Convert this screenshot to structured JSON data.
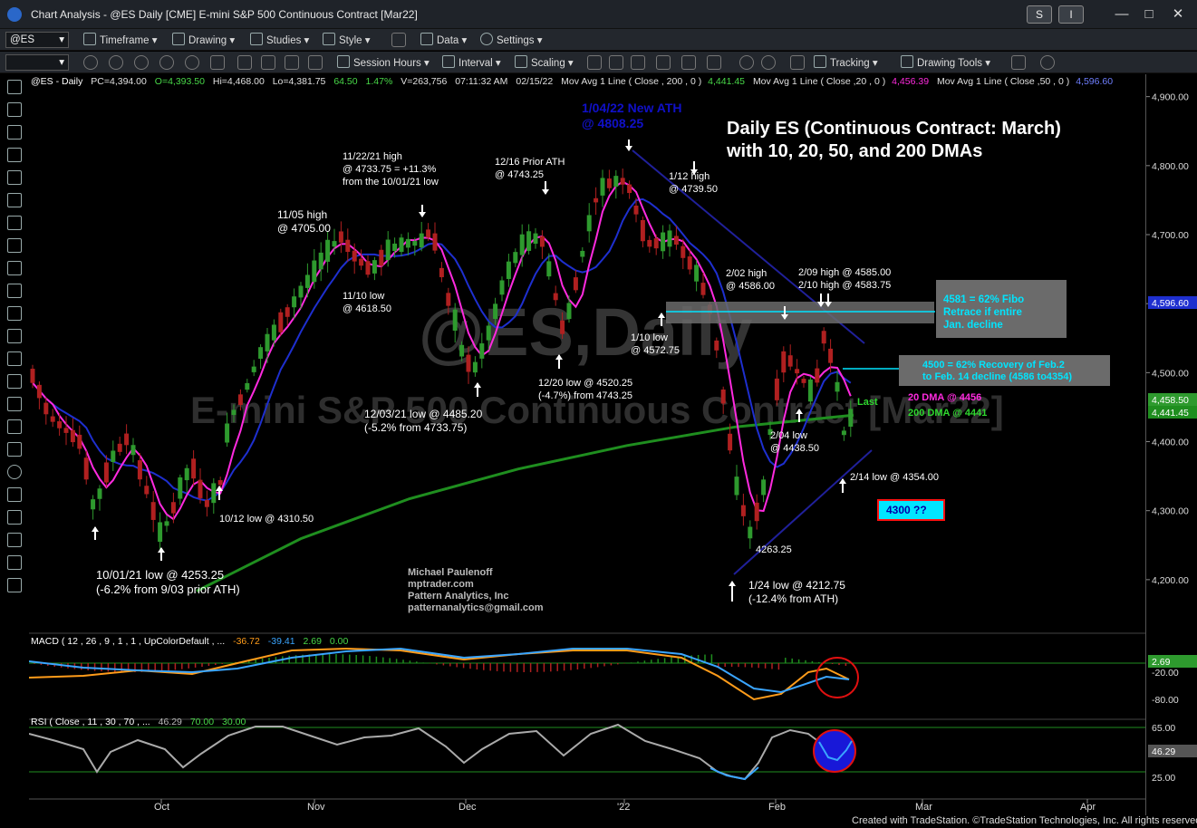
{
  "window": {
    "title": "Chart Analysis - @ES Daily [CME] E-mini S&P 500 Continuous Contract [Mar22]",
    "btn_s": "S",
    "btn_i": "I"
  },
  "toolbar1": {
    "symbol": "@ES",
    "timeframe": "Timeframe",
    "drawing": "Drawing",
    "studies": "Studies",
    "style": "Style",
    "data": "Data",
    "settings": "Settings"
  },
  "toolbar2": {
    "session_hours": "Session Hours",
    "interval": "Interval",
    "scaling": "Scaling",
    "tracking": "Tracking",
    "drawing_tools": "Drawing Tools"
  },
  "status_line": {
    "symbol": "@ES - Daily",
    "pc": "PC=4,394.00",
    "o": "O=4,393.50",
    "hi": "Hi=4,468.00",
    "lo": "Lo=4,381.75",
    "chg": "64.50",
    "pct": "1.47%",
    "vol": "V=263,756",
    "time": "07:11:32 AM",
    "date": "02/15/22",
    "ma200_label": "Mov Avg 1 Line ( Close , 200 , 0 )",
    "ma200_val": "4,441.45",
    "ma20_label": "Mov Avg 1 Line ( Close ,20 , 0 )",
    "ma20_val": "4,456.39",
    "ma50_label": "Mov Avg 1 Line ( Close ,50 , 0 )",
    "ma50_val": "4,596.60"
  },
  "colors": {
    "up": "#2e9a2e",
    "down": "#b02020",
    "ma20": "#ff2adf",
    "ma50": "#1e2fcf",
    "ma200": "#1f8e1f",
    "annotation": "#ffffff",
    "title_blue": "#1010c8",
    "cyan": "#00e5ff"
  },
  "chart_data": {
    "type": "candlestick",
    "title": "Daily ES (Continuous Contract: March) with 10, 20, 50, and 200 DMAs",
    "title_line1": "Daily ES (Continuous Contract: March)",
    "title_line2": "with 10, 20, 50, and 200 DMAs",
    "watermark_symbol": "@ES,Daily",
    "watermark_name": "E-mini S&P 500 Continuous Contract [Mar22]",
    "ylim": [
      4125,
      4935
    ],
    "y_ticks": [
      "4,900.00",
      "4,800.00",
      "4,700.00",
      "4,600.00",
      "4,500.00",
      "4,400.00",
      "4,300.00",
      "4,200.00"
    ],
    "x_ticks": [
      "Oct",
      "Nov",
      "Dec",
      "'22",
      "Feb",
      "Mar",
      "Apr"
    ],
    "last_price_tag": "4,458.50",
    "ma200_tag": "4,441.45",
    "ma50_tag": "4,596.60",
    "annotations": [
      {
        "id": "ath",
        "lines": [
          "1/04/22 New ATH",
          "@ 4808.25"
        ],
        "color": "#1010c8"
      },
      {
        "id": "h1122",
        "lines": [
          "11/22/21 high",
          "@ 4733.75 = +11.3%",
          "from the 10/01/21 low"
        ]
      },
      {
        "id": "h1216",
        "lines": [
          "12/16 Prior ATH",
          "@ 4743.25"
        ]
      },
      {
        "id": "h0112",
        "lines": [
          "1/12 high",
          "@ 4739.50"
        ]
      },
      {
        "id": "h1105",
        "lines": [
          "11/05 high",
          "@ 4705.00"
        ]
      },
      {
        "id": "l1110",
        "lines": [
          "11/10 low",
          "@ 4618.50"
        ]
      },
      {
        "id": "h0202",
        "lines": [
          "2/02 high",
          "@ 4586.00"
        ]
      },
      {
        "id": "h0209",
        "lines": [
          "2/09 high @ 4585.00",
          "2/10 high @ 4583.75"
        ]
      },
      {
        "id": "l0110",
        "lines": [
          "1/10 low",
          "@ 4572.75"
        ]
      },
      {
        "id": "l1220",
        "lines": [
          "12/20 low @ 4520.25",
          "(-4.7%) from 4743.25"
        ]
      },
      {
        "id": "l1203",
        "lines": [
          "12/03/21 low @ 4485.20",
          "(-5.2% from 4733.75)"
        ]
      },
      {
        "id": "l0204",
        "lines": [
          "2/04 low",
          "@ 4438.50"
        ]
      },
      {
        "id": "l0214",
        "lines": [
          "2/14 low @ 4354.00"
        ]
      },
      {
        "id": "l1012",
        "lines": [
          "10/12 low @ 4310.50"
        ]
      },
      {
        "id": "l1001",
        "lines": [
          "10/01/21 low @ 4253.25",
          "(-6.2% from 9/03 prior ATH)"
        ]
      },
      {
        "id": "l4263",
        "lines": [
          "4263.25"
        ]
      },
      {
        "id": "l0124",
        "lines": [
          "1/24 low @ 4212.75",
          "(-12.4% from ATH)"
        ]
      }
    ],
    "fibo_box": {
      "lines": [
        "4581 = 62% Fibo",
        "Retrace if entire",
        "Jan. decline"
      ]
    },
    "recovery_box": {
      "lines": [
        "4500 = 62% Recovery of Feb.2",
        "to Feb. 14 decline (4586 to4354)"
      ]
    },
    "target_box": "4300 ??",
    "last_label": "Last",
    "ma20_label": "20 DMA @ 4456",
    "ma200_label": "200 DMA @ 4441",
    "credit": [
      "Michael Paulenoff",
      "mptrader.com",
      "Pattern Analytics, Inc",
      "patternanalytics@gmail.com"
    ],
    "series": [
      {
        "name": "20 DMA",
        "color": "#ff2adf"
      },
      {
        "name": "50 DMA",
        "color": "#1e2fcf"
      },
      {
        "name": "200 DMA",
        "color": "#1f8e1f"
      }
    ]
  },
  "macd": {
    "label": "MACD ( 12 , 26 , 9 , 1 , 1 , UpColorDefault , ...",
    "v1": "-36.72",
    "v2": "-39.41",
    "v3": "2.69",
    "v4": "0.00",
    "tag": "2.69",
    "ticks": [
      "-20.00",
      "-80.00"
    ]
  },
  "rsi": {
    "label": "RSI ( Close , 11 , 30 , 70 , ...",
    "v1": "46.29",
    "v2": "70.00",
    "v3": "30.00",
    "tag": "46.29",
    "ticks": [
      "65.00",
      "25.00"
    ]
  },
  "footer": "Created with TradeStation. ©TradeStation Technologies, Inc. All rights reserved."
}
